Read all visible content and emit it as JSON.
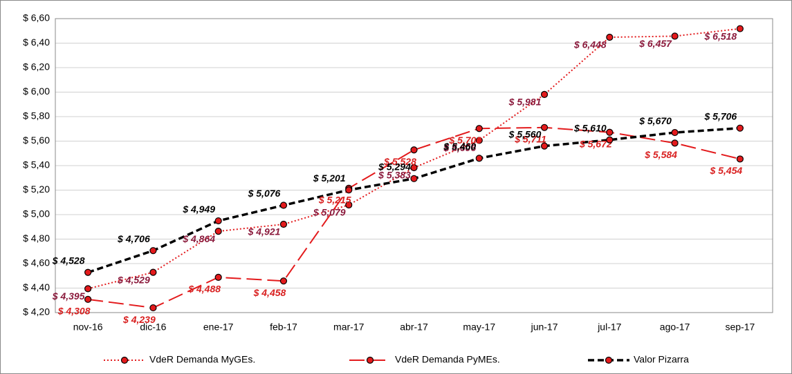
{
  "chart_data": {
    "type": "line",
    "categories": [
      "nov-16",
      "dic-16",
      "ene-17",
      "feb-17",
      "mar-17",
      "abr-17",
      "may-17",
      "jun-17",
      "jul-17",
      "ago-17",
      "sep-17"
    ],
    "series": [
      {
        "name": "VdeR Demanda MyGEs.",
        "color": "#e31a1c",
        "label_color": "#8b1a3c",
        "line_style": "dotted",
        "values": [
          4.395,
          4.529,
          4.864,
          4.921,
          5.079,
          5.383,
          5.606,
          5.981,
          6.448,
          6.457,
          6.518
        ],
        "value_labels": [
          "$ 4,395",
          "$ 4,529",
          "$ 4,864",
          "$ 4,921",
          "$ 5,079",
          "$ 5,383",
          "$ 5,606",
          "$ 5,981",
          "$ 6,448",
          "$ 6,457",
          "$ 6,518"
        ]
      },
      {
        "name": "VdeR Demanda PyMEs.",
        "color": "#e31a1c",
        "label_color": "#d92020",
        "line_style": "longdash",
        "values": [
          4.308,
          4.239,
          4.488,
          4.458,
          5.215,
          5.528,
          5.703,
          5.711,
          5.672,
          5.584,
          5.454
        ],
        "value_labels": [
          "$ 4,308",
          "$ 4,239",
          "$ 4,488",
          "$ 4,458",
          "$ 5,215",
          "$ 5,528",
          "$ 5,703",
          "$ 5,711",
          "$ 5,672",
          "$ 5,584",
          "$ 5,454"
        ]
      },
      {
        "name": "Valor Pizarra",
        "color": "#000000",
        "label_color": "#000000",
        "line_style": "dashed",
        "values": [
          4.528,
          4.706,
          4.949,
          5.076,
          5.201,
          5.294,
          5.46,
          5.56,
          5.61,
          5.67,
          5.706
        ],
        "value_labels": [
          "$ 4,528",
          "$ 4,706",
          "$ 4,949",
          "$ 5,076",
          "$ 5,201",
          "$ 5,294",
          "$ 5,460",
          "$ 5,560",
          "$ 5,610",
          "$ 5,670",
          "$ 5,706"
        ]
      }
    ],
    "marker_color": "#e31a1c",
    "ylim": [
      4.2,
      6.6
    ],
    "yticks": [
      {
        "value": 4.2,
        "label": "$ 4,20"
      },
      {
        "value": 4.4,
        "label": "$ 4,40"
      },
      {
        "value": 4.6,
        "label": "$ 4,60"
      },
      {
        "value": 4.8,
        "label": "$ 4,80"
      },
      {
        "value": 5.0,
        "label": "$ 5,00"
      },
      {
        "value": 5.2,
        "label": "$ 5,20"
      },
      {
        "value": 5.4,
        "label": "$ 5,40"
      },
      {
        "value": 5.6,
        "label": "$ 5,60"
      },
      {
        "value": 5.8,
        "label": "$ 5,80"
      },
      {
        "value": 6.0,
        "label": "$ 6,00"
      },
      {
        "value": 6.2,
        "label": "$ 6,20"
      },
      {
        "value": 6.4,
        "label": "$ 6,40"
      },
      {
        "value": 6.6,
        "label": "$ 6,60"
      }
    ],
    "grid": true,
    "legend": "bottom"
  }
}
